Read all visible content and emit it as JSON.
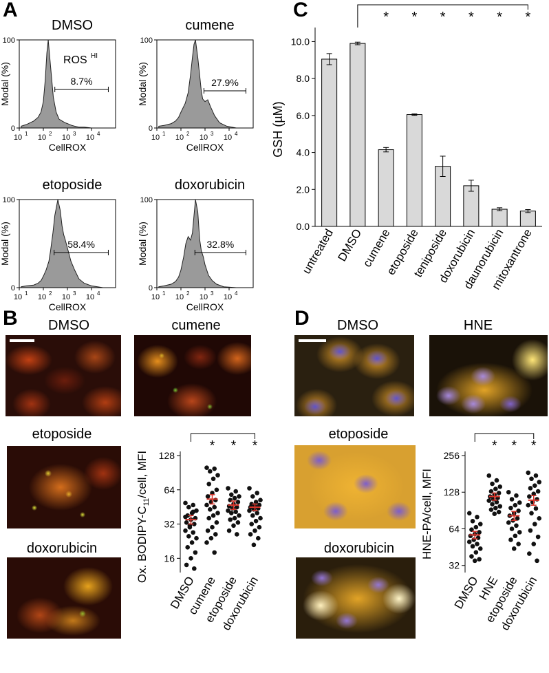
{
  "panels": {
    "A": {
      "letter": "A",
      "histograms": [
        {
          "title": "DMSO",
          "gate_label": "8.7%",
          "annotation": "ROS",
          "annotation_sup": "HI"
        },
        {
          "title": "cumene",
          "gate_label": "27.9%"
        },
        {
          "title": "etoposide",
          "gate_label": "58.4%"
        },
        {
          "title": "doxorubicin",
          "gate_label": "32.8%"
        }
      ],
      "xlabel": "CellROX",
      "ylabel": "Modal (%)",
      "y_ticks": [
        "0",
        "100"
      ],
      "x_ticks": [
        "10",
        "10",
        "10",
        "10"
      ],
      "x_tick_exp": [
        "1",
        "2",
        "3",
        "4"
      ]
    },
    "B": {
      "letter": "B",
      "images": [
        {
          "title": "DMSO"
        },
        {
          "title": "cumene"
        },
        {
          "title": "etoposide"
        },
        {
          "title": "doxorubicin"
        }
      ],
      "ylabel_main": "Ox. BODIPY-C",
      "ylabel_sub": "11",
      "ylabel_tail": "/cell, MFI",
      "y_ticks": [
        "16",
        "32",
        "64",
        "128"
      ],
      "star": "*"
    },
    "C": {
      "letter": "C",
      "ylabel": "GSH (µM)",
      "y_ticks": [
        "0.0",
        "2.0",
        "4.0",
        "6.0",
        "8.0",
        "10.0"
      ],
      "star": "*"
    },
    "D": {
      "letter": "D",
      "images": [
        {
          "title": "DMSO"
        },
        {
          "title": "HNE"
        },
        {
          "title": "etoposide"
        },
        {
          "title": "doxorubicin"
        }
      ],
      "ylabel": "HNE-PA/cell, MFI",
      "y_ticks": [
        "32",
        "64",
        "128",
        "256"
      ],
      "star": "*"
    }
  },
  "colors": {
    "bar_fill": "#d9d9d9",
    "hist_fill": "#9a9a9a",
    "mean_marker": "#d9352b",
    "dot": "#111111"
  },
  "chart_data": [
    {
      "type": "bar",
      "panel": "C",
      "categories": [
        "untreated",
        "DMSO",
        "cumene",
        "etoposide",
        "teniposide",
        "doxorubicin",
        "daunorubicin",
        "mitoxantrone"
      ],
      "values": [
        9.05,
        9.9,
        4.15,
        6.05,
        3.25,
        2.2,
        0.93,
        0.83
      ],
      "errors": [
        0.3,
        0.07,
        0.12,
        0.04,
        0.55,
        0.3,
        0.08,
        0.08
      ],
      "ylabel": "GSH (µM)",
      "ylim": [
        0,
        10.5
      ],
      "significant": [
        false,
        false,
        true,
        true,
        true,
        true,
        true,
        true
      ],
      "comparison_reference": "DMSO"
    },
    {
      "type": "scatter",
      "panel": "B",
      "categories": [
        "DMSO",
        "cumene",
        "etoposide",
        "doxorubicin"
      ],
      "y_scale": "log2",
      "ylim": [
        12,
        128
      ],
      "means": [
        35,
        53,
        47,
        45
      ],
      "sem": [
        3,
        5,
        4,
        3
      ],
      "significant": [
        false,
        true,
        true,
        true
      ],
      "points": [
        [
          49,
          47,
          45,
          42,
          40,
          38,
          36,
          35,
          33,
          32,
          30,
          28,
          27,
          25,
          24,
          22,
          20,
          18,
          16,
          14,
          13,
          31,
          37,
          41
        ],
        [
          100,
          98,
          93,
          86,
          80,
          72,
          64,
          60,
          56,
          52,
          50,
          47,
          45,
          43,
          40,
          38,
          36,
          33,
          30,
          28,
          26,
          24,
          22,
          18
        ],
        [
          66,
          62,
          58,
          56,
          54,
          52,
          50,
          48,
          46,
          45,
          44,
          42,
          41,
          40,
          38,
          36,
          35,
          33,
          31,
          28,
          26
        ],
        [
          66,
          60,
          56,
          52,
          50,
          48,
          47,
          46,
          45,
          44,
          43,
          42,
          40,
          38,
          36,
          34,
          32,
          30,
          28,
          26,
          24,
          21
        ]
      ]
    },
    {
      "type": "scatter",
      "panel": "D",
      "categories": [
        "DMSO",
        "HNE",
        "etoposide",
        "doxorubicin"
      ],
      "y_scale": "log2",
      "ylim": [
        28,
        256
      ],
      "means": [
        57,
        118,
        82,
        110
      ],
      "sem": [
        4,
        8,
        7,
        10
      ],
      "significant": [
        false,
        true,
        true,
        true
      ],
      "points": [
        [
          86,
          80,
          74,
          70,
          66,
          63,
          60,
          58,
          56,
          54,
          52,
          50,
          48,
          46,
          44,
          41,
          38,
          36,
          35
        ],
        [
          175,
          160,
          150,
          142,
          136,
          130,
          126,
          122,
          118,
          115,
          112,
          109,
          106,
          102,
          98,
          95,
          92,
          88,
          85
        ],
        [
          128,
          120,
          112,
          105,
          100,
          95,
          90,
          86,
          82,
          78,
          75,
          72,
          68,
          64,
          60,
          56,
          52,
          48,
          44
        ],
        [
          185,
          175,
          165,
          155,
          145,
          138,
          130,
          124,
          118,
          112,
          106,
          100,
          94,
          86,
          78,
          70,
          62,
          55,
          48,
          40,
          35
        ]
      ]
    },
    {
      "type": "area",
      "panel": "A",
      "x_scale": "log10",
      "xlim": [
        10,
        100000
      ],
      "ylim": [
        0,
        100
      ],
      "series": [
        {
          "title": "DMSO",
          "gate_x": [
            300,
            50000
          ],
          "x": [
            12,
            20,
            40,
            60,
            80,
            100,
            120,
            140,
            160,
            200,
            260,
            340,
            450,
            600,
            800,
            1000,
            1500,
            2000,
            3000,
            5000,
            10000,
            30000
          ],
          "y": [
            2,
            4,
            8,
            12,
            18,
            30,
            55,
            85,
            100,
            70,
            35,
            18,
            10,
            8,
            6,
            5,
            3,
            2,
            1,
            1,
            0,
            0
          ]
        },
        {
          "title": "cumene",
          "gate_x": [
            900,
            50000
          ],
          "x": [
            12,
            20,
            40,
            60,
            80,
            100,
            150,
            200,
            250,
            300,
            350,
            400,
            500,
            600,
            700,
            800,
            1000,
            1300,
            1700,
            2500,
            4000,
            8000,
            20000
          ],
          "y": [
            2,
            3,
            5,
            8,
            12,
            18,
            28,
            40,
            60,
            80,
            95,
            100,
            80,
            60,
            42,
            33,
            30,
            32,
            24,
            14,
            6,
            2,
            0
          ]
        },
        {
          "title": "etoposide",
          "gate_x": [
            280,
            50000
          ],
          "x": [
            12,
            20,
            40,
            60,
            80,
            100,
            130,
            170,
            200,
            250,
            300,
            400,
            500,
            600,
            700,
            800,
            1000,
            1400,
            2000,
            3000,
            5000,
            10000,
            30000
          ],
          "y": [
            1,
            2,
            3,
            5,
            8,
            13,
            20,
            30,
            42,
            62,
            82,
            100,
            88,
            70,
            60,
            55,
            45,
            30,
            20,
            10,
            5,
            2,
            0
          ]
        },
        {
          "title": "doxorubicin",
          "gate_x": [
            380,
            50000
          ],
          "x": [
            12,
            20,
            40,
            60,
            80,
            100,
            130,
            160,
            200,
            250,
            300,
            350,
            400,
            500,
            600,
            700,
            850,
            1000,
            1400,
            2000,
            3000,
            6000,
            20000
          ],
          "y": [
            1,
            2,
            4,
            7,
            12,
            20,
            35,
            50,
            58,
            54,
            62,
            82,
            100,
            86,
            55,
            42,
            35,
            26,
            14,
            8,
            4,
            1,
            0
          ]
        }
      ]
    }
  ]
}
